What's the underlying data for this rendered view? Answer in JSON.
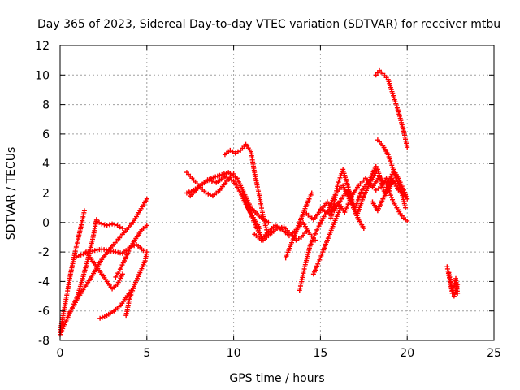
{
  "chart_data": {
    "type": "scatter",
    "title": "Day 365 of 2023, Sidereal Day-to-day VTEC variation (SDTVAR) for receiver mtbu",
    "xlabel": "GPS time / hours",
    "ylabel": "SDTVAR / TECUs",
    "xlim": [
      0,
      25
    ],
    "ylim": [
      -8,
      12
    ],
    "xticks": [
      0,
      5,
      10,
      15,
      20,
      25
    ],
    "yticks": [
      -8,
      -6,
      -4,
      -2,
      0,
      2,
      4,
      6,
      8,
      10,
      12
    ],
    "grid": true,
    "marker": "plus",
    "color": "#ff0000",
    "series": [
      {
        "x": [
          0.0,
          0.3,
          0.6,
          0.9,
          1.2,
          1.4
        ],
        "y": [
          -7.4,
          -5.5,
          -3.5,
          -1.8,
          -0.3,
          0.8
        ]
      },
      {
        "x": [
          0.0,
          0.3,
          0.7,
          1.2,
          1.8,
          2.4,
          3.0,
          3.6,
          4.2,
          4.6,
          5.0
        ],
        "y": [
          -7.6,
          -6.8,
          -5.8,
          -4.8,
          -3.7,
          -2.5,
          -1.6,
          -0.8,
          0.0,
          0.8,
          1.6
        ]
      },
      {
        "x": [
          0.5,
          0.7,
          1.0,
          1.3,
          1.6,
          1.9,
          2.1
        ],
        "y": [
          -6.2,
          -5.8,
          -5.0,
          -3.8,
          -2.5,
          -1.0,
          0.2
        ]
      },
      {
        "x": [
          2.1,
          2.4,
          2.7,
          3.0,
          3.3,
          3.6
        ],
        "y": [
          0.1,
          -0.1,
          -0.2,
          -0.1,
          -0.2,
          -0.4
        ]
      },
      {
        "x": [
          1.5,
          1.8,
          2.1,
          2.4,
          2.7,
          3.0,
          3.3,
          3.6
        ],
        "y": [
          -2.0,
          -2.5,
          -3.0,
          -3.5,
          -4.0,
          -4.5,
          -4.2,
          -3.5
        ]
      },
      {
        "x": [
          0.8,
          1.2,
          1.6,
          2.0,
          2.4,
          2.8,
          3.2,
          3.6,
          4.0,
          4.4,
          4.8
        ],
        "y": [
          -2.4,
          -2.2,
          -2.0,
          -1.9,
          -1.8,
          -1.9,
          -2.0,
          -2.1,
          -1.7,
          -1.5,
          -1.9
        ]
      },
      {
        "x": [
          2.3,
          2.7,
          3.1,
          3.5,
          3.8,
          4.1
        ],
        "y": [
          -6.5,
          -6.3,
          -6.0,
          -5.6,
          -5.1,
          -4.6
        ]
      },
      {
        "x": [
          3.8,
          4.0,
          4.3,
          4.6,
          4.9,
          5.0
        ],
        "y": [
          -6.3,
          -5.2,
          -4.2,
          -3.4,
          -2.6,
          -2.0
        ]
      },
      {
        "x": [
          3.2,
          3.4,
          3.7,
          4.0,
          4.3,
          4.7,
          5.0
        ],
        "y": [
          -3.7,
          -3.3,
          -2.6,
          -1.8,
          -1.2,
          -0.5,
          -0.2
        ]
      },
      {
        "x": [
          7.3,
          7.6,
          8.0,
          8.4,
          8.8,
          9.2,
          9.6,
          10.0
        ],
        "y": [
          3.4,
          3.0,
          2.5,
          2.0,
          1.8,
          2.2,
          2.8,
          3.3
        ]
      },
      {
        "x": [
          7.3,
          7.7,
          8.2,
          8.7,
          9.2,
          9.7,
          10.2,
          10.6,
          11.0,
          11.5,
          12.0
        ],
        "y": [
          2.0,
          2.2,
          2.6,
          3.0,
          3.2,
          3.4,
          3.0,
          2.0,
          1.0,
          0.4,
          0.0
        ]
      },
      {
        "x": [
          7.5,
          8.0,
          8.5,
          9.0,
          9.5,
          10.0,
          10.4,
          10.8,
          11.2,
          11.5
        ],
        "y": [
          1.8,
          2.4,
          2.9,
          2.7,
          3.1,
          2.8,
          2.0,
          1.0,
          0.2,
          -0.4
        ]
      },
      {
        "x": [
          9.5,
          9.8,
          10.1,
          10.4,
          10.7,
          11.0,
          11.2,
          11.5,
          11.7,
          11.9
        ],
        "y": [
          4.6,
          4.9,
          4.7,
          4.9,
          5.3,
          4.8,
          3.4,
          1.7,
          0.4,
          -0.5
        ]
      },
      {
        "x": [
          10.5,
          10.9,
          11.3,
          11.7,
          12.1,
          12.5,
          12.9,
          13.3,
          13.6,
          13.9,
          14.2
        ],
        "y": [
          2.0,
          0.8,
          -0.3,
          -1.2,
          -0.8,
          -0.4,
          -0.3,
          -0.8,
          -1.2,
          -1.0,
          -0.6
        ]
      },
      {
        "x": [
          11.2,
          11.6,
          12.0,
          12.4,
          12.8,
          13.2,
          13.6,
          14.0,
          14.4,
          14.7
        ],
        "y": [
          -0.8,
          -1.2,
          -0.6,
          -0.2,
          -0.5,
          -0.9,
          -0.5,
          0.0,
          -0.8,
          -1.2
        ]
      },
      {
        "x": [
          13.0,
          13.3,
          13.6,
          13.9,
          14.2,
          14.5
        ],
        "y": [
          -2.4,
          -1.5,
          -0.6,
          0.3,
          1.2,
          2.0
        ]
      },
      {
        "x": [
          13.8,
          14.1,
          14.4,
          14.8,
          15.2,
          15.6
        ],
        "y": [
          -4.6,
          -3.0,
          -1.6,
          -0.5,
          0.4,
          1.0
        ]
      },
      {
        "x": [
          14.6,
          15.0,
          15.4,
          15.8,
          16.2
        ],
        "y": [
          -3.5,
          -2.4,
          -1.2,
          0.0,
          1.1
        ]
      },
      {
        "x": [
          14.2,
          14.6,
          15.0,
          15.4,
          15.8,
          16.2,
          16.6,
          17.0,
          17.4,
          17.8,
          18.2
        ],
        "y": [
          0.6,
          0.2,
          0.8,
          1.4,
          0.8,
          1.6,
          2.2,
          1.0,
          2.2,
          2.8,
          3.8
        ]
      },
      {
        "x": [
          15.0,
          15.5,
          16.0,
          16.4,
          16.8,
          17.2,
          17.6,
          18.0,
          18.4,
          18.8,
          19.2,
          19.6,
          19.9
        ],
        "y": [
          0.9,
          0.6,
          1.3,
          0.7,
          1.8,
          2.5,
          3.0,
          2.4,
          3.1,
          2.6,
          3.4,
          2.4,
          1.0
        ]
      },
      {
        "x": [
          15.5,
          15.9,
          16.3,
          16.7,
          17.1,
          17.5,
          17.9,
          18.3,
          18.7,
          19.1,
          19.5,
          19.9
        ],
        "y": [
          1.0,
          2.0,
          2.5,
          1.5,
          0.5,
          1.8,
          2.8,
          3.6,
          2.0,
          3.0,
          2.2,
          1.8
        ]
      },
      {
        "x": [
          15.6,
          15.8,
          16.0,
          16.3,
          16.6,
          16.9,
          17.2,
          17.5
        ],
        "y": [
          0.3,
          1.4,
          2.6,
          3.6,
          2.4,
          1.0,
          0.2,
          -0.4
        ]
      },
      {
        "x": [
          18.0,
          18.3,
          18.6,
          18.9,
          19.2
        ],
        "y": [
          1.4,
          0.8,
          1.6,
          2.2,
          2.8
        ]
      },
      {
        "x": [
          18.2,
          18.5,
          18.8,
          19.0,
          19.2,
          19.4,
          19.6,
          19.8,
          20.0
        ],
        "y": [
          2.2,
          2.4,
          3.0,
          2.0,
          1.4,
          1.0,
          0.6,
          0.3,
          0.1
        ]
      },
      {
        "x": [
          18.3,
          18.6,
          18.9,
          19.2,
          19.5,
          19.8,
          20.0
        ],
        "y": [
          5.6,
          5.2,
          4.6,
          3.6,
          3.0,
          2.2,
          1.6
        ]
      },
      {
        "x": [
          18.2,
          18.4,
          18.6,
          18.9,
          19.2,
          19.5,
          19.8,
          20.0
        ],
        "y": [
          10.0,
          10.3,
          10.1,
          9.7,
          8.6,
          7.5,
          6.2,
          5.1
        ]
      },
      {
        "x": [
          22.3,
          22.4,
          22.5,
          22.6,
          22.7,
          22.8,
          22.9
        ],
        "y": [
          -3.0,
          -3.6,
          -4.2,
          -4.8,
          -5.0,
          -4.6,
          -4.2
        ]
      },
      {
        "x": [
          22.4,
          22.5,
          22.6,
          22.7,
          22.8,
          22.9
        ],
        "y": [
          -3.4,
          -4.0,
          -4.6,
          -4.3,
          -3.8,
          -4.8
        ]
      }
    ]
  }
}
